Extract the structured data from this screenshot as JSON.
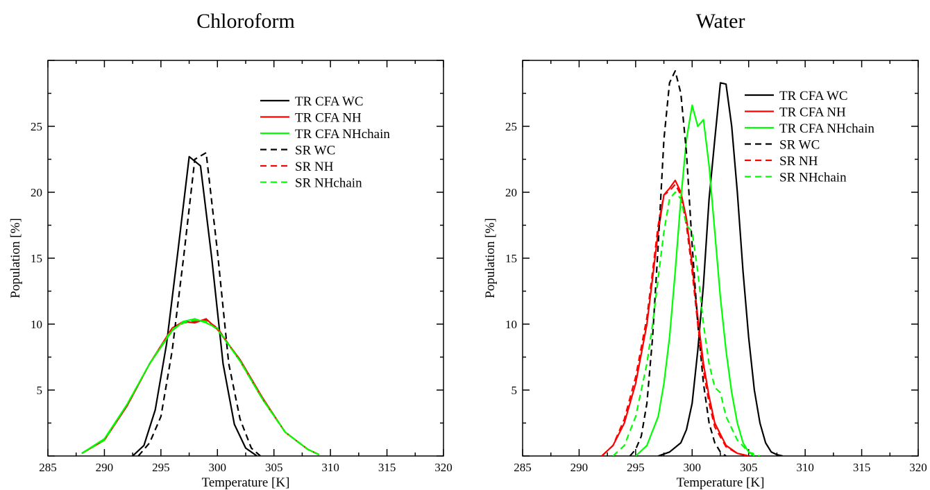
{
  "chart_data": [
    {
      "type": "line",
      "title": "Chloroform",
      "xlabel": "Temperature [K]",
      "ylabel": "Population [%]",
      "xlim": [
        285,
        320
      ],
      "ylim": [
        0,
        30
      ],
      "xticks": [
        285,
        290,
        295,
        300,
        305,
        310,
        315,
        320
      ],
      "yticks": [
        5,
        10,
        15,
        20,
        25
      ],
      "grid": false,
      "legend_position": "top-right",
      "series": [
        {
          "name": "TR CFA WC",
          "color": "#000000",
          "dash": "solid",
          "x": [
            292.5,
            293.5,
            294.5,
            295.5,
            296.5,
            297.5,
            298.5,
            299.5,
            300.5,
            301.5,
            302.5,
            303.5
          ],
          "y": [
            0.0,
            0.8,
            3.5,
            8.5,
            15.5,
            22.7,
            22.0,
            15.0,
            7.0,
            2.4,
            0.6,
            0.0
          ]
        },
        {
          "name": "TR CFA NH",
          "color": "#ff0000",
          "dash": "solid",
          "x": [
            288,
            290,
            292,
            294,
            296,
            297,
            298,
            299,
            300,
            302,
            304,
            306,
            308,
            309
          ],
          "y": [
            0.2,
            1.2,
            3.8,
            7.0,
            9.7,
            10.2,
            10.1,
            10.4,
            9.6,
            7.3,
            4.4,
            1.8,
            0.5,
            0.1
          ]
        },
        {
          "name": "TR CFA NHchain",
          "color": "#00ff00",
          "dash": "solid",
          "x": [
            288,
            290,
            292,
            294,
            296,
            297,
            298,
            299,
            300,
            302,
            304,
            306,
            308,
            309
          ],
          "y": [
            0.2,
            1.3,
            3.9,
            7.0,
            9.5,
            10.2,
            10.4,
            10.1,
            9.7,
            7.2,
            4.3,
            1.8,
            0.5,
            0.1
          ]
        },
        {
          "name": "SR WC",
          "color": "#000000",
          "dash": "dashed",
          "x": [
            293.0,
            294.0,
            295.0,
            296.0,
            297.0,
            298.0,
            299.0,
            300.0,
            301.0,
            302.0,
            303.0,
            303.8
          ],
          "y": [
            0.0,
            1.0,
            3.0,
            8.0,
            15.0,
            22.5,
            23.0,
            15.5,
            7.0,
            2.8,
            0.6,
            0.0
          ]
        },
        {
          "name": "SR NH",
          "color": "#ff0000",
          "dash": "dashed",
          "x": [
            288,
            290,
            292,
            294,
            296,
            297,
            298,
            299,
            300,
            302,
            304,
            306,
            308,
            309
          ],
          "y": [
            0.2,
            1.2,
            3.8,
            7.0,
            9.6,
            10.1,
            10.2,
            10.3,
            9.7,
            7.2,
            4.3,
            1.8,
            0.5,
            0.1
          ]
        },
        {
          "name": "SR NHchain",
          "color": "#00ff00",
          "dash": "dashed",
          "x": [
            288,
            290,
            292,
            294,
            296,
            297,
            298,
            299,
            300,
            302,
            304,
            306,
            308,
            309
          ],
          "y": [
            0.2,
            1.2,
            3.9,
            7.0,
            9.6,
            10.1,
            10.3,
            10.2,
            9.6,
            7.2,
            4.3,
            1.8,
            0.5,
            0.1
          ]
        }
      ]
    },
    {
      "type": "line",
      "title": "Water",
      "xlabel": "Temperature [K]",
      "ylabel": "Population [%]",
      "xlim": [
        285,
        320
      ],
      "ylim": [
        0,
        30
      ],
      "xticks": [
        285,
        290,
        295,
        300,
        305,
        310,
        315,
        320
      ],
      "yticks": [
        5,
        10,
        15,
        20,
        25
      ],
      "grid": false,
      "legend_position": "top-right",
      "series": [
        {
          "name": "TR CFA WC",
          "color": "#000000",
          "dash": "solid",
          "x": [
            297.0,
            298.0,
            299.0,
            299.5,
            300.0,
            300.5,
            301.0,
            301.5,
            302.0,
            302.5,
            303.0,
            303.5,
            304.0,
            304.5,
            305.0,
            305.5,
            306.0,
            306.5,
            307.0,
            307.5,
            308.0
          ],
          "y": [
            0.0,
            0.3,
            1.0,
            2.0,
            4.0,
            8.0,
            13.0,
            19.5,
            24.0,
            28.3,
            28.2,
            25.0,
            20.0,
            14.0,
            9.0,
            5.0,
            2.5,
            1.0,
            0.3,
            0.1,
            0.0
          ]
        },
        {
          "name": "TR CFA NH",
          "color": "#ff0000",
          "dash": "solid",
          "x": [
            292.0,
            293.0,
            294.0,
            295.0,
            296.0,
            296.5,
            297.0,
            297.5,
            298.0,
            298.5,
            299.0,
            299.5,
            300.0,
            300.5,
            301.0,
            301.5,
            302.0,
            303.0,
            304.0,
            305.0
          ],
          "y": [
            0.0,
            0.8,
            2.5,
            5.5,
            10.0,
            13.5,
            17.0,
            19.8,
            20.3,
            20.9,
            20.0,
            18.0,
            14.5,
            10.5,
            7.0,
            4.5,
            2.5,
            0.8,
            0.2,
            0.0
          ]
        },
        {
          "name": "TR CFA NHchain",
          "color": "#00ff00",
          "dash": "solid",
          "x": [
            295.0,
            296.0,
            297.0,
            297.5,
            298.0,
            298.5,
            299.0,
            299.5,
            300.0,
            300.5,
            301.0,
            301.5,
            302.0,
            302.5,
            303.0,
            303.5,
            304.0,
            304.5,
            305.0,
            305.5
          ],
          "y": [
            0.0,
            0.8,
            3.0,
            5.5,
            9.0,
            14.0,
            19.5,
            24.0,
            26.6,
            25.0,
            25.5,
            22.0,
            17.0,
            12.0,
            8.0,
            4.8,
            2.5,
            1.0,
            0.3,
            0.0
          ]
        },
        {
          "name": "SR WC",
          "color": "#000000",
          "dash": "dashed",
          "x": [
            294.5,
            295.0,
            295.5,
            296.0,
            296.5,
            297.0,
            297.5,
            298.0,
            298.5,
            299.0,
            299.5,
            300.0,
            300.5,
            301.0,
            301.5,
            302.0,
            302.5,
            303.0
          ],
          "y": [
            0.0,
            0.5,
            1.5,
            4.0,
            9.0,
            16.0,
            24.0,
            28.3,
            29.2,
            27.5,
            23.0,
            16.0,
            10.0,
            5.5,
            2.5,
            1.0,
            0.3,
            0.0
          ]
        },
        {
          "name": "SR NH",
          "color": "#ff0000",
          "dash": "dashed",
          "x": [
            292.0,
            293.0,
            294.0,
            295.0,
            296.0,
            296.5,
            297.0,
            297.5,
            298.0,
            298.5,
            299.0,
            299.5,
            300.0,
            300.5,
            301.0,
            301.5,
            302.0,
            303.0,
            304.0,
            305.0
          ],
          "y": [
            0.0,
            0.8,
            2.8,
            6.0,
            10.5,
            14.0,
            17.5,
            19.8,
            20.1,
            20.6,
            19.8,
            17.5,
            14.0,
            10.0,
            6.5,
            4.0,
            2.2,
            0.7,
            0.2,
            0.0
          ]
        },
        {
          "name": "SR NHchain",
          "color": "#00ff00",
          "dash": "dashed",
          "x": [
            293.0,
            294.0,
            295.0,
            296.0,
            296.5,
            297.0,
            297.5,
            298.0,
            298.5,
            299.0,
            299.5,
            300.0,
            300.5,
            301.0,
            301.5,
            302.0,
            302.5,
            303.0,
            304.0,
            305.0,
            306.0
          ],
          "y": [
            0.0,
            0.8,
            3.0,
            7.0,
            10.0,
            13.5,
            17.0,
            19.5,
            20.0,
            19.5,
            17.5,
            17.0,
            14.0,
            10.0,
            7.0,
            5.2,
            4.8,
            3.0,
            1.2,
            0.3,
            0.0
          ]
        }
      ]
    }
  ]
}
